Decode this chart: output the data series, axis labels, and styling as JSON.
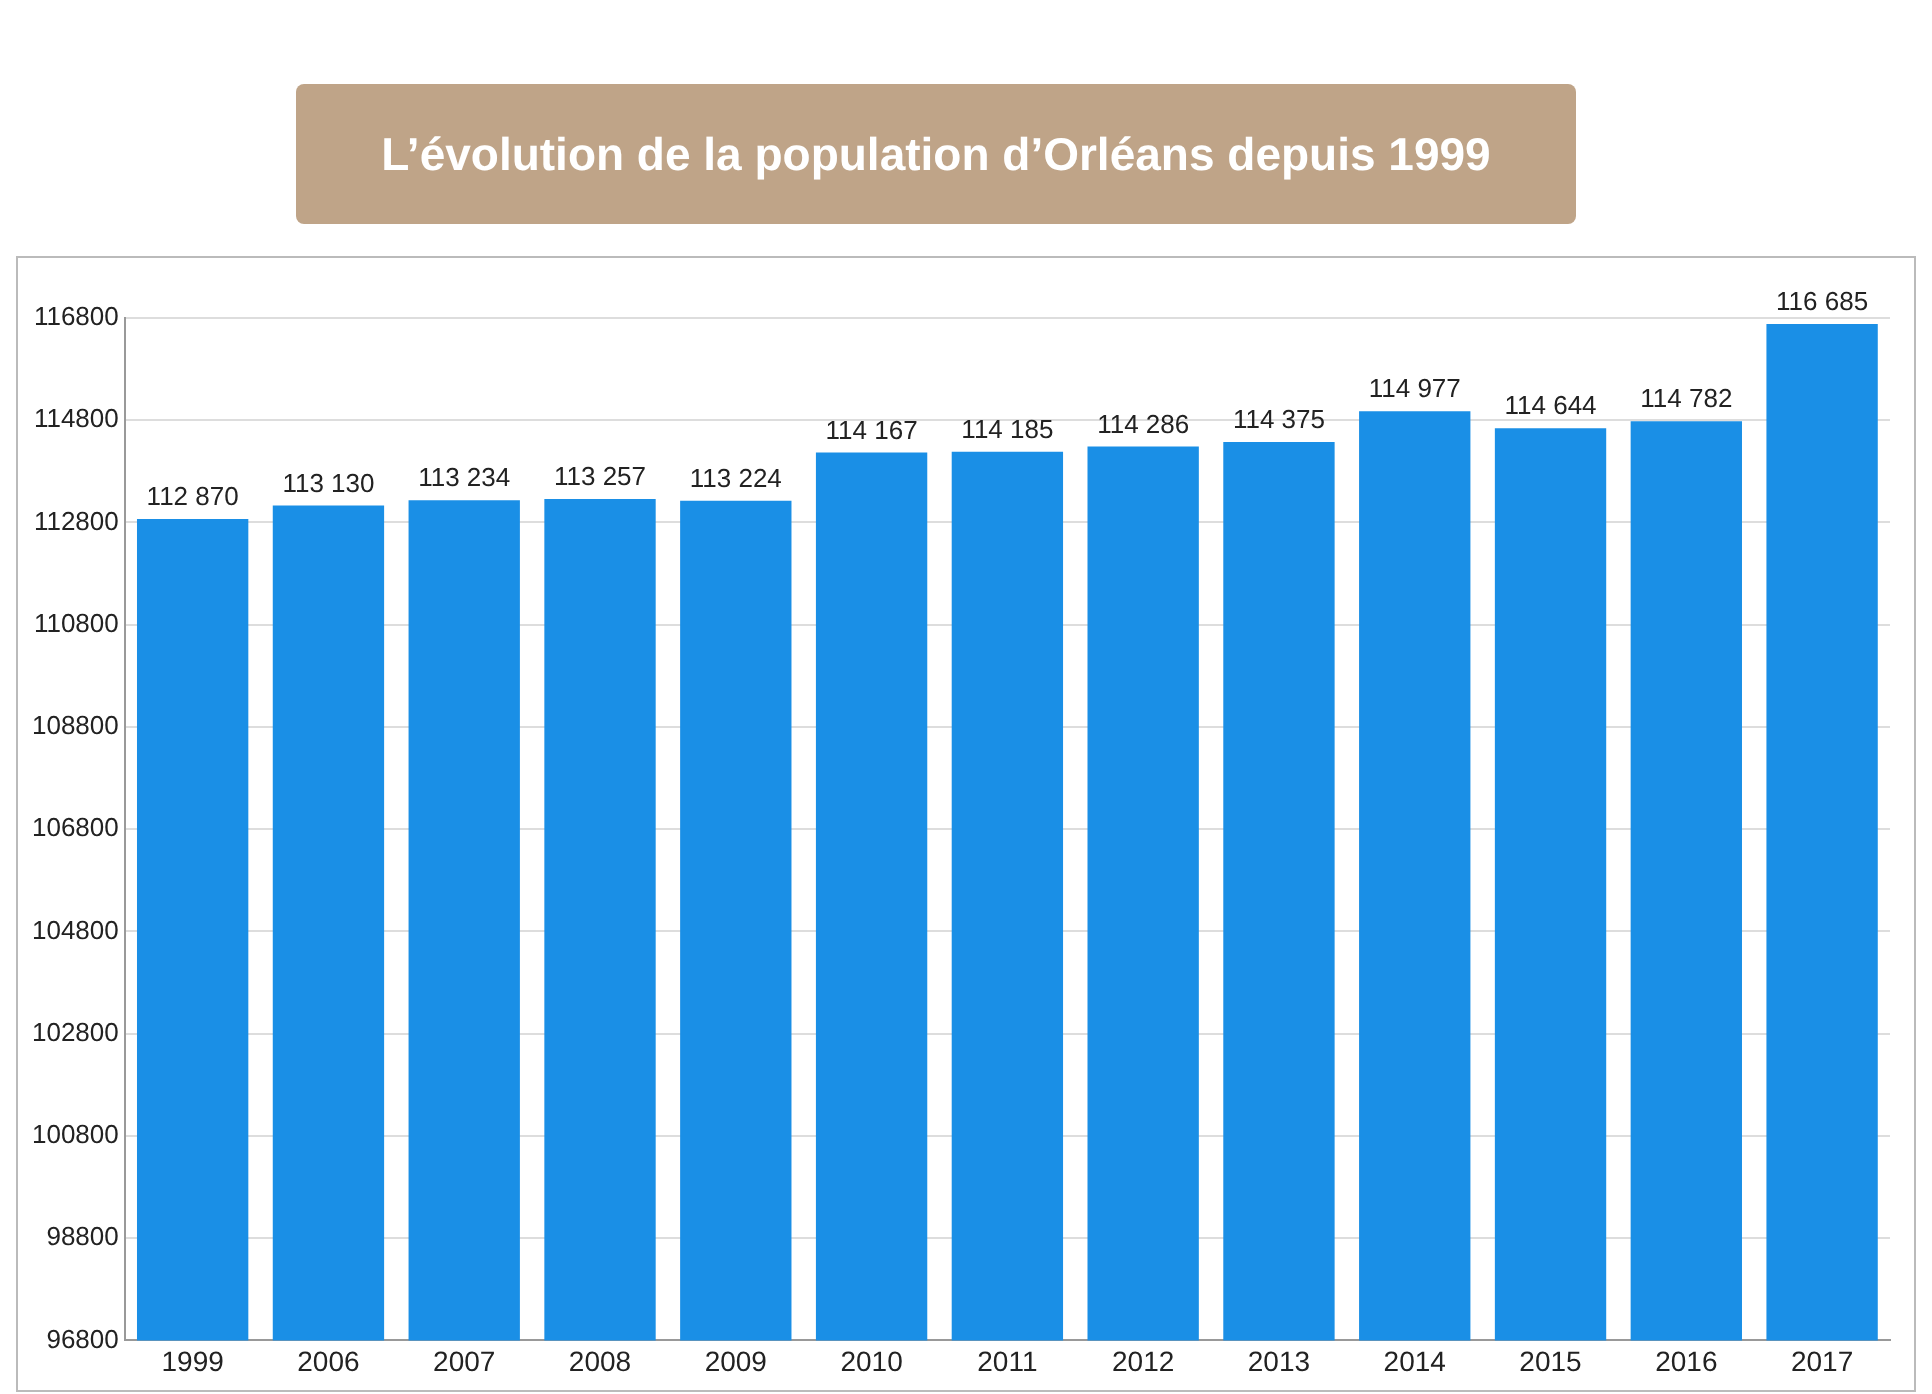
{
  "chart_data": {
    "type": "bar",
    "title": "L’évolution de la population d’Orléans depuis 1999",
    "categories": [
      "1999",
      "2006",
      "2007",
      "2008",
      "2009",
      "2010",
      "2011",
      "2012",
      "2013",
      "2014",
      "2015",
      "2016",
      "2017"
    ],
    "values": [
      112870,
      113130,
      113234,
      113257,
      113224,
      114167,
      114185,
      114286,
      114375,
      114977,
      114644,
      114782,
      116685
    ],
    "value_labels": [
      "112 870",
      "113 130",
      "113 234",
      "113 257",
      "113 224",
      "114 167",
      "114 185",
      "114 286",
      "114 375",
      "114 977",
      "114 644",
      "114 782",
      "116 685"
    ],
    "color": "#1a8fe6",
    "ylim": [
      96800,
      116800
    ],
    "yticks": [
      96800,
      98800,
      100800,
      102800,
      104800,
      106800,
      108800,
      110800,
      112800,
      114800,
      116800
    ],
    "grid": "y"
  }
}
